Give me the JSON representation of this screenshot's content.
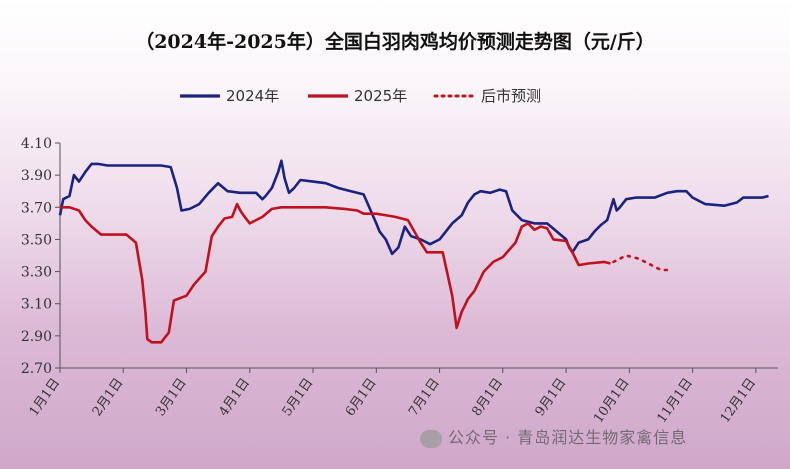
{
  "chart_data": {
    "type": "line",
    "title": "（2024年-2025年）全国白羽肉鸡均价预测走势图（元/斤）",
    "xlabel": "",
    "ylabel": "",
    "ylim": [
      2.7,
      4.1
    ],
    "yticks": [
      "4.10",
      "3.90",
      "3.70",
      "3.50",
      "3.30",
      "3.10",
      "2.90",
      "2.70"
    ],
    "xticks": [
      {
        "label": "1月1日",
        "month": 1
      },
      {
        "label": "2月1日",
        "month": 2
      },
      {
        "label": "3月1日",
        "month": 3
      },
      {
        "label": "4月1日",
        "month": 4
      },
      {
        "label": "5月1日",
        "month": 5
      },
      {
        "label": "6月1日",
        "month": 6
      },
      {
        "label": "7月1日",
        "month": 7
      },
      {
        "label": "8月1日",
        "month": 8
      },
      {
        "label": "9月1日",
        "month": 9
      },
      {
        "label": "10月1日",
        "month": 10
      },
      {
        "label": "11月1日",
        "month": 11
      },
      {
        "label": "12月1日",
        "month": 12
      }
    ],
    "legend_position": "top",
    "grid": false,
    "series": [
      {
        "name": "2024年",
        "color": "#1a237e",
        "style": "solid",
        "points": [
          [
            1.0,
            3.65
          ],
          [
            1.05,
            3.75
          ],
          [
            1.15,
            3.77
          ],
          [
            1.22,
            3.9
          ],
          [
            1.3,
            3.86
          ],
          [
            1.4,
            3.92
          ],
          [
            1.5,
            3.97
          ],
          [
            1.6,
            3.97
          ],
          [
            1.75,
            3.96
          ],
          [
            2.0,
            3.96
          ],
          [
            2.3,
            3.96
          ],
          [
            2.6,
            3.96
          ],
          [
            2.75,
            3.95
          ],
          [
            2.85,
            3.82
          ],
          [
            2.92,
            3.68
          ],
          [
            3.05,
            3.69
          ],
          [
            3.2,
            3.72
          ],
          [
            3.35,
            3.79
          ],
          [
            3.5,
            3.85
          ],
          [
            3.65,
            3.8
          ],
          [
            3.85,
            3.79
          ],
          [
            4.1,
            3.79
          ],
          [
            4.2,
            3.75
          ],
          [
            4.25,
            3.77
          ],
          [
            4.35,
            3.82
          ],
          [
            4.45,
            3.92
          ],
          [
            4.5,
            3.99
          ],
          [
            4.55,
            3.88
          ],
          [
            4.62,
            3.79
          ],
          [
            4.7,
            3.82
          ],
          [
            4.8,
            3.87
          ],
          [
            5.0,
            3.86
          ],
          [
            5.2,
            3.85
          ],
          [
            5.4,
            3.82
          ],
          [
            5.6,
            3.8
          ],
          [
            5.8,
            3.78
          ],
          [
            6.0,
            3.6
          ],
          [
            6.05,
            3.55
          ],
          [
            6.15,
            3.5
          ],
          [
            6.25,
            3.41
          ],
          [
            6.35,
            3.45
          ],
          [
            6.45,
            3.58
          ],
          [
            6.55,
            3.52
          ],
          [
            6.7,
            3.5
          ],
          [
            6.85,
            3.47
          ],
          [
            7.0,
            3.5
          ],
          [
            7.1,
            3.55
          ],
          [
            7.2,
            3.6
          ],
          [
            7.35,
            3.65
          ],
          [
            7.45,
            3.73
          ],
          [
            7.55,
            3.78
          ],
          [
            7.65,
            3.8
          ],
          [
            7.8,
            3.79
          ],
          [
            7.95,
            3.81
          ],
          [
            8.05,
            3.8
          ],
          [
            8.15,
            3.68
          ],
          [
            8.3,
            3.62
          ],
          [
            8.5,
            3.6
          ],
          [
            8.7,
            3.6
          ],
          [
            8.85,
            3.55
          ],
          [
            9.0,
            3.5
          ],
          [
            9.05,
            3.45
          ],
          [
            9.1,
            3.42
          ],
          [
            9.2,
            3.48
          ],
          [
            9.35,
            3.5
          ],
          [
            9.45,
            3.55
          ],
          [
            9.55,
            3.59
          ],
          [
            9.65,
            3.62
          ],
          [
            9.75,
            3.75
          ],
          [
            9.8,
            3.68
          ],
          [
            9.85,
            3.7
          ],
          [
            9.95,
            3.75
          ],
          [
            10.1,
            3.76
          ],
          [
            10.4,
            3.76
          ],
          [
            10.6,
            3.79
          ],
          [
            10.75,
            3.8
          ],
          [
            10.9,
            3.8
          ],
          [
            11.0,
            3.76
          ],
          [
            11.2,
            3.72
          ],
          [
            11.5,
            3.71
          ],
          [
            11.7,
            3.73
          ],
          [
            11.8,
            3.76
          ],
          [
            12.1,
            3.76
          ],
          [
            12.2,
            3.77
          ]
        ]
      },
      {
        "name": "2025年",
        "color": "#c0111f",
        "style": "solid",
        "points": [
          [
            1.0,
            3.7
          ],
          [
            1.15,
            3.7
          ],
          [
            1.3,
            3.68
          ],
          [
            1.4,
            3.62
          ],
          [
            1.5,
            3.58
          ],
          [
            1.65,
            3.53
          ],
          [
            1.85,
            3.53
          ],
          [
            2.05,
            3.53
          ],
          [
            2.2,
            3.48
          ],
          [
            2.3,
            3.25
          ],
          [
            2.35,
            3.05
          ],
          [
            2.38,
            2.88
          ],
          [
            2.45,
            2.86
          ],
          [
            2.6,
            2.86
          ],
          [
            2.72,
            2.92
          ],
          [
            2.8,
            3.12
          ],
          [
            3.0,
            3.15
          ],
          [
            3.12,
            3.22
          ],
          [
            3.3,
            3.3
          ],
          [
            3.4,
            3.52
          ],
          [
            3.5,
            3.58
          ],
          [
            3.6,
            3.63
          ],
          [
            3.72,
            3.64
          ],
          [
            3.8,
            3.72
          ],
          [
            3.85,
            3.68
          ],
          [
            3.9,
            3.65
          ],
          [
            4.0,
            3.6
          ],
          [
            4.1,
            3.62
          ],
          [
            4.2,
            3.64
          ],
          [
            4.35,
            3.69
          ],
          [
            4.5,
            3.7
          ],
          [
            4.8,
            3.7
          ],
          [
            5.2,
            3.7
          ],
          [
            5.5,
            3.69
          ],
          [
            5.7,
            3.68
          ],
          [
            5.8,
            3.66
          ],
          [
            6.0,
            3.66
          ],
          [
            6.3,
            3.64
          ],
          [
            6.5,
            3.62
          ],
          [
            6.6,
            3.55
          ],
          [
            6.7,
            3.48
          ],
          [
            6.8,
            3.42
          ],
          [
            7.05,
            3.42
          ],
          [
            7.2,
            3.15
          ],
          [
            7.27,
            2.95
          ],
          [
            7.35,
            3.05
          ],
          [
            7.45,
            3.13
          ],
          [
            7.55,
            3.18
          ],
          [
            7.7,
            3.3
          ],
          [
            7.85,
            3.36
          ],
          [
            8.0,
            3.39
          ],
          [
            8.2,
            3.48
          ],
          [
            8.3,
            3.58
          ],
          [
            8.4,
            3.6
          ],
          [
            8.5,
            3.56
          ],
          [
            8.6,
            3.58
          ],
          [
            8.7,
            3.57
          ],
          [
            8.8,
            3.5
          ],
          [
            9.0,
            3.49
          ],
          [
            9.1,
            3.42
          ],
          [
            9.2,
            3.34
          ],
          [
            9.35,
            3.35
          ],
          [
            9.6,
            3.36
          ],
          [
            9.7,
            3.35
          ]
        ]
      },
      {
        "name": "后市预测",
        "color": "#c0111f",
        "style": "dotted",
        "points": [
          [
            9.75,
            3.36
          ],
          [
            9.95,
            3.4
          ],
          [
            10.15,
            3.38
          ],
          [
            10.35,
            3.34
          ],
          [
            10.5,
            3.31
          ],
          [
            10.65,
            3.31
          ]
        ]
      }
    ]
  },
  "watermark": {
    "text": "公众号 · 青岛润达生物家禽信息"
  }
}
